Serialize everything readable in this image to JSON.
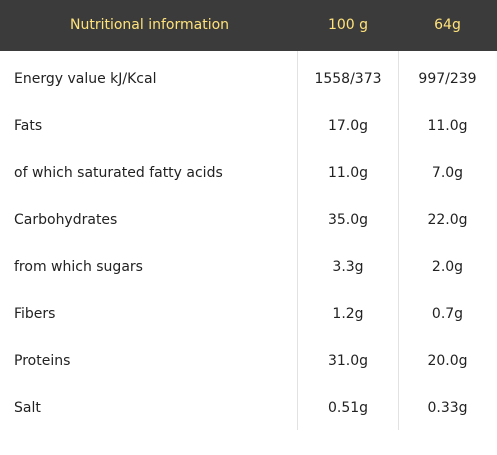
{
  "table": {
    "header": {
      "label": "Nutritional information",
      "col1": "100 g",
      "col2": "64g"
    },
    "rows": [
      {
        "label": "Energy value kJ/Kcal",
        "col1": "1558/373",
        "col2": "997/239"
      },
      {
        "label": "Fats",
        "col1": "17.0g",
        "col2": "11.0g"
      },
      {
        "label": "of which saturated fatty acids",
        "col1": "11.0g",
        "col2": "7.0g"
      },
      {
        "label": "Carbohydrates",
        "col1": "35.0g",
        "col2": "22.0g"
      },
      {
        "label": "from which sugars",
        "col1": "3.3g",
        "col2": "2.0g"
      },
      {
        "label": "Fibers",
        "col1": "1.2g",
        "col2": "0.7g"
      },
      {
        "label": "Proteins",
        "col1": "31.0g",
        "col2": "20.0g"
      },
      {
        "label": "Salt",
        "col1": "0.51g",
        "col2": "0.33g"
      }
    ]
  },
  "colors": {
    "header_background": "#3b3b3b",
    "header_text": "#ffe27a",
    "body_text": "#222222",
    "divider": "#e2e2e2"
  }
}
